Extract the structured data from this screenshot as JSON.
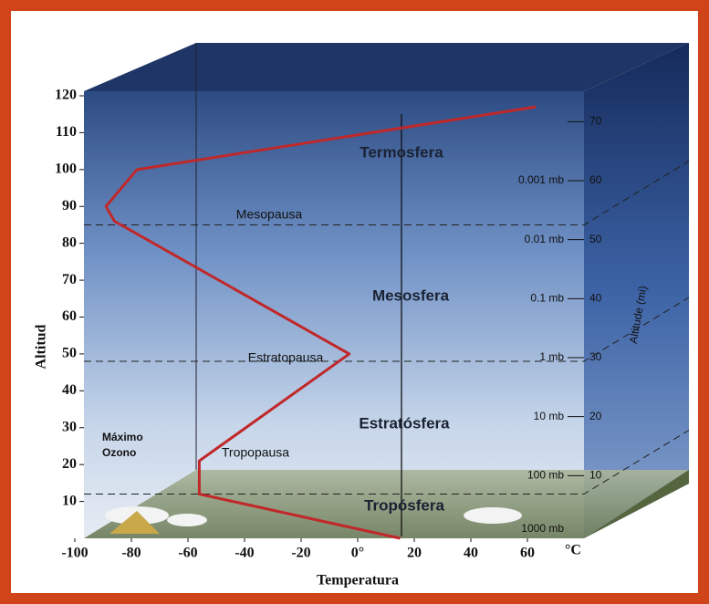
{
  "chart_data": {
    "type": "line",
    "x_label": "Temperatura",
    "x_unit": "°C",
    "y_label": "Altitud",
    "y2_label": "Altitude (mi)",
    "x": [
      15,
      -56,
      -56,
      -3,
      -86,
      -89,
      -78,
      63
    ],
    "y": [
      0,
      12,
      21,
      50,
      86,
      90,
      100,
      117
    ],
    "color": "#c0282a",
    "xlim": [
      -100,
      80
    ],
    "xticks": [
      -100,
      -80,
      -60,
      -40,
      -20,
      {
        "value": 0,
        "label": "0°"
      },
      20,
      40,
      60
    ],
    "ylim": [
      0,
      120
    ],
    "yticks": [
      10,
      20,
      30,
      40,
      50,
      60,
      70,
      80,
      90,
      100,
      110,
      120
    ],
    "y2lim": [
      0,
      75
    ],
    "y2ticks": [
      10,
      20,
      30,
      40,
      50,
      60,
      70
    ],
    "pressure_levels": [
      "1000 mb",
      "100 mb",
      "10 mb",
      "1 mb",
      "0.1 mb",
      "0.01 mb",
      "0.001 mb"
    ],
    "layers": [
      "Tropósfera",
      "Estratósfera",
      "Mesosfera",
      "Termosfera"
    ],
    "boundaries": [
      {
        "name": "Tropopausa",
        "altitude": 12
      },
      {
        "name": "Estratopausa",
        "altitude": 48
      },
      {
        "name": "Mesopausa",
        "altitude": 85
      }
    ],
    "annotation": [
      "Máximo",
      "Ozono"
    ]
  }
}
